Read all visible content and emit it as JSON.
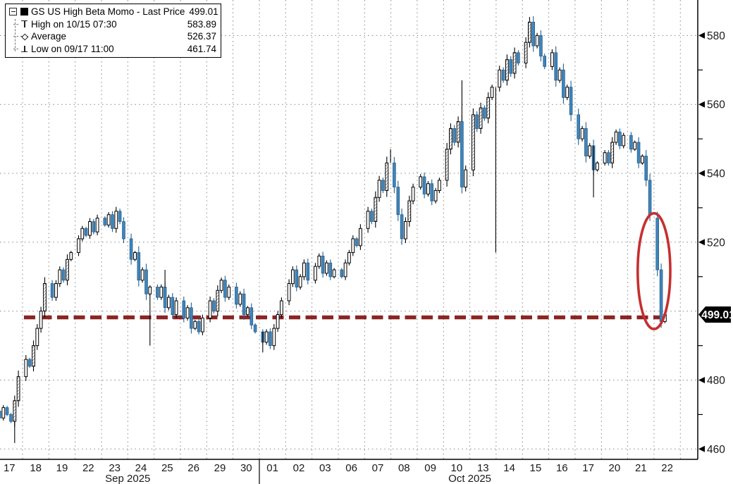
{
  "legend": {
    "rows": [
      {
        "icon": "series-swatch",
        "label": "GS US High Beta Momo - Last Price",
        "value": "499.01"
      },
      {
        "icon": "high-marker",
        "label": "High on 10/15 07:30",
        "value": "583.89"
      },
      {
        "icon": "average-marker",
        "label": "Average",
        "value": "526.37"
      },
      {
        "icon": "low-marker",
        "label": "Low on 09/17 11:00",
        "value": "461.74"
      }
    ]
  },
  "chart_data": {
    "type": "ohlc-bar",
    "title": "GS US High Beta Momo",
    "last_price": 499.01,
    "last_price_label": "499.01",
    "stats": {
      "high_label": "High on 10/15 07:30",
      "high": 583.89,
      "average": 526.37,
      "low_label": "Low on 09/17 11:00",
      "low": 461.74
    },
    "y_axis": {
      "side": "right",
      "range": [
        456.99,
        590.3
      ],
      "labeled_ticks": [
        580,
        560,
        540,
        520,
        480,
        460
      ],
      "gridlines": [
        580,
        560,
        540,
        520,
        500,
        480,
        460
      ],
      "minor_ticks": [
        570,
        550,
        530,
        510,
        490,
        470
      ]
    },
    "x_axis": {
      "month_labels": [
        {
          "text": "Sep 2025",
          "at_day_boundary": 4
        },
        {
          "text": "Oct 2025",
          "at_day_boundary": 17
        }
      ],
      "month_separator_after_day": 9
    },
    "support_line": {
      "value": 499.01,
      "style": "dashed"
    },
    "ellipse_annotation": {
      "at_day_boundary": 24,
      "center_price": 511.6,
      "half_height_price": 16.8,
      "half_width_days": 0.62
    },
    "days": [
      {
        "label": "17",
        "prices": [
          471,
          469,
          472,
          470,
          468,
          474,
          481
        ],
        "spikes": [
          {
            "at": 4,
            "to": 461.74
          }
        ]
      },
      {
        "label": "18",
        "prices": [
          481,
          486,
          484,
          490,
          495,
          500,
          508
        ]
      },
      {
        "label": "19",
        "prices": [
          508,
          504,
          508,
          512,
          509,
          515,
          517
        ]
      },
      {
        "label": "22",
        "prices": [
          517,
          521,
          524,
          522,
          526,
          523,
          527
        ]
      },
      {
        "label": "23",
        "prices": [
          527,
          525,
          528,
          524,
          529,
          526,
          521
        ]
      },
      {
        "label": "24",
        "prices": [
          521,
          515,
          517,
          509,
          512,
          505,
          507
        ],
        "spikes": [
          {
            "at": 5,
            "to": 490
          }
        ]
      },
      {
        "label": "25",
        "prices": [
          507,
          504,
          507,
          501,
          504,
          499,
          503
        ],
        "spikes": [
          {
            "at": 2,
            "to": 512
          }
        ]
      },
      {
        "label": "26",
        "prices": [
          503,
          498,
          501,
          495,
          497,
          494,
          498
        ]
      },
      {
        "label": "29",
        "prices": [
          498,
          503,
          500,
          506,
          509,
          504,
          507
        ]
      },
      {
        "label": "30",
        "prices": [
          507,
          502,
          505,
          499,
          501,
          496,
          494
        ]
      },
      {
        "label": "01",
        "prices": [
          494,
          491,
          494,
          490,
          495,
          499,
          503
        ],
        "spikes": [
          {
            "at": 0,
            "to": 488
          }
        ]
      },
      {
        "label": "02",
        "prices": [
          503,
          508,
          512,
          507,
          510,
          514,
          509
        ]
      },
      {
        "label": "03",
        "prices": [
          509,
          513,
          516,
          511,
          514,
          510,
          512
        ]
      },
      {
        "label": "06",
        "prices": [
          512,
          510,
          514,
          517,
          521,
          519,
          524
        ]
      },
      {
        "label": "07",
        "prices": [
          524,
          529,
          526,
          533,
          538,
          535,
          543
        ],
        "spikes": [
          {
            "at": 6,
            "to": 547
          }
        ]
      },
      {
        "label": "08",
        "prices": [
          543,
          536,
          528,
          521,
          526,
          532,
          536
        ]
      },
      {
        "label": "09",
        "prices": [
          536,
          539,
          534,
          537,
          532,
          535,
          538
        ]
      },
      {
        "label": "10",
        "prices": [
          538,
          547,
          553,
          549,
          555,
          536,
          541
        ],
        "spikes": [
          {
            "at": 4,
            "to": 567
          }
        ]
      },
      {
        "label": "13",
        "prices": [
          541,
          557,
          553,
          559,
          556,
          562,
          565
        ],
        "spikes": [
          {
            "at": 6,
            "to": 517
          }
        ]
      },
      {
        "label": "14",
        "prices": [
          565,
          570,
          567,
          573,
          569,
          575,
          572
        ]
      },
      {
        "label": "15",
        "prices": [
          572,
          578,
          583.89,
          577,
          580,
          574,
          571
        ]
      },
      {
        "label": "16",
        "prices": [
          571,
          575,
          567,
          570,
          562,
          565,
          557
        ]
      },
      {
        "label": "17",
        "prices": [
          557,
          550,
          553,
          545,
          548,
          541,
          543
        ],
        "spikes": [
          {
            "at": 4,
            "to": 533
          }
        ]
      },
      {
        "label": "20",
        "prices": [
          543,
          546,
          543,
          549,
          552,
          548,
          551
        ]
      },
      {
        "label": "21",
        "prices": [
          551,
          547,
          549,
          543,
          545,
          538,
          528
        ]
      },
      {
        "label": "22",
        "prices": [
          527,
          512,
          497,
          499.01
        ]
      }
    ]
  },
  "colors": {
    "background": "#ffffff",
    "grid": "#8c8c8c",
    "axis": "#000000",
    "bar_up_fill": "#ffffff",
    "bar_outline": "#000000",
    "bar_down_fill": "#3e86be",
    "bar_down_edge": "#2a5f8a",
    "support_line": "#8b2424",
    "ellipse": "#c62f2f",
    "tag_bg": "#000000",
    "tag_text": "#ffffff",
    "label_text": "#1a1a1a"
  }
}
